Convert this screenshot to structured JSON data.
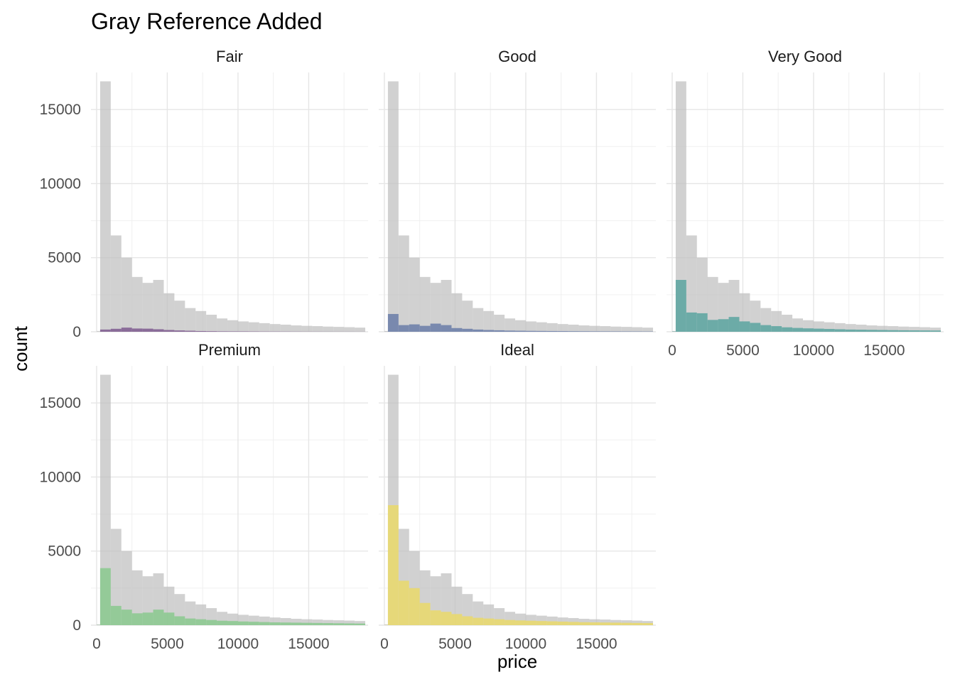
{
  "chart_data": {
    "type": "bar",
    "title": "Gray Reference Added",
    "xlabel": "price",
    "ylabel": "count",
    "xlim": [
      -400,
      19200
    ],
    "ylim": [
      0,
      17500
    ],
    "x_ticks": [
      0,
      5000,
      10000,
      15000
    ],
    "y_ticks": [
      0,
      5000,
      10000,
      15000
    ],
    "grid": true,
    "bin_edges": [
      0,
      250,
      1000,
      1750,
      2500,
      3250,
      4000,
      4750,
      5500,
      6250,
      7000,
      7750,
      8500,
      9250,
      10000,
      10750,
      11500,
      12250,
      13000,
      13750,
      14500,
      15250,
      16000,
      16750,
      17500,
      18250,
      19000
    ],
    "reference": {
      "color": "#bebebe",
      "values": [
        50,
        16900,
        6500,
        5000,
        3700,
        3300,
        3500,
        2600,
        2100,
        1600,
        1400,
        1150,
        900,
        780,
        700,
        640,
        580,
        520,
        480,
        430,
        400,
        380,
        350,
        330,
        310,
        280
      ]
    },
    "panels": [
      {
        "name": "Fair",
        "color": "#7e5a8f",
        "values": [
          0,
          150,
          200,
          280,
          220,
          210,
          170,
          120,
          90,
          70,
          50,
          40,
          30,
          28,
          26,
          22,
          18,
          16,
          14,
          12,
          10,
          9,
          8,
          7,
          6,
          5
        ]
      },
      {
        "name": "Good",
        "color": "#6a7da8",
        "values": [
          5,
          1200,
          450,
          500,
          400,
          550,
          450,
          250,
          200,
          150,
          120,
          100,
          80,
          70,
          60,
          55,
          50,
          45,
          40,
          36,
          32,
          30,
          28,
          26,
          24,
          22
        ]
      },
      {
        "name": "Very Good",
        "color": "#5aa4a0",
        "values": [
          20,
          3500,
          1300,
          1250,
          800,
          850,
          1000,
          700,
          600,
          450,
          380,
          300,
          260,
          230,
          210,
          190,
          170,
          150,
          140,
          130,
          120,
          110,
          100,
          95,
          90,
          85
        ]
      },
      {
        "name": "Premium",
        "color": "#8ac98e",
        "values": [
          15,
          3850,
          1300,
          1050,
          800,
          850,
          1050,
          850,
          600,
          450,
          400,
          350,
          300,
          280,
          250,
          230,
          210,
          190,
          180,
          170,
          160,
          150,
          140,
          130,
          120,
          110
        ]
      },
      {
        "name": "Ideal",
        "color": "#ead96a",
        "values": [
          10,
          8100,
          3000,
          2500,
          1500,
          1000,
          900,
          750,
          600,
          500,
          450,
          400,
          350,
          320,
          300,
          280,
          260,
          240,
          220,
          200,
          190,
          180,
          170,
          160,
          150,
          140
        ]
      }
    ]
  }
}
